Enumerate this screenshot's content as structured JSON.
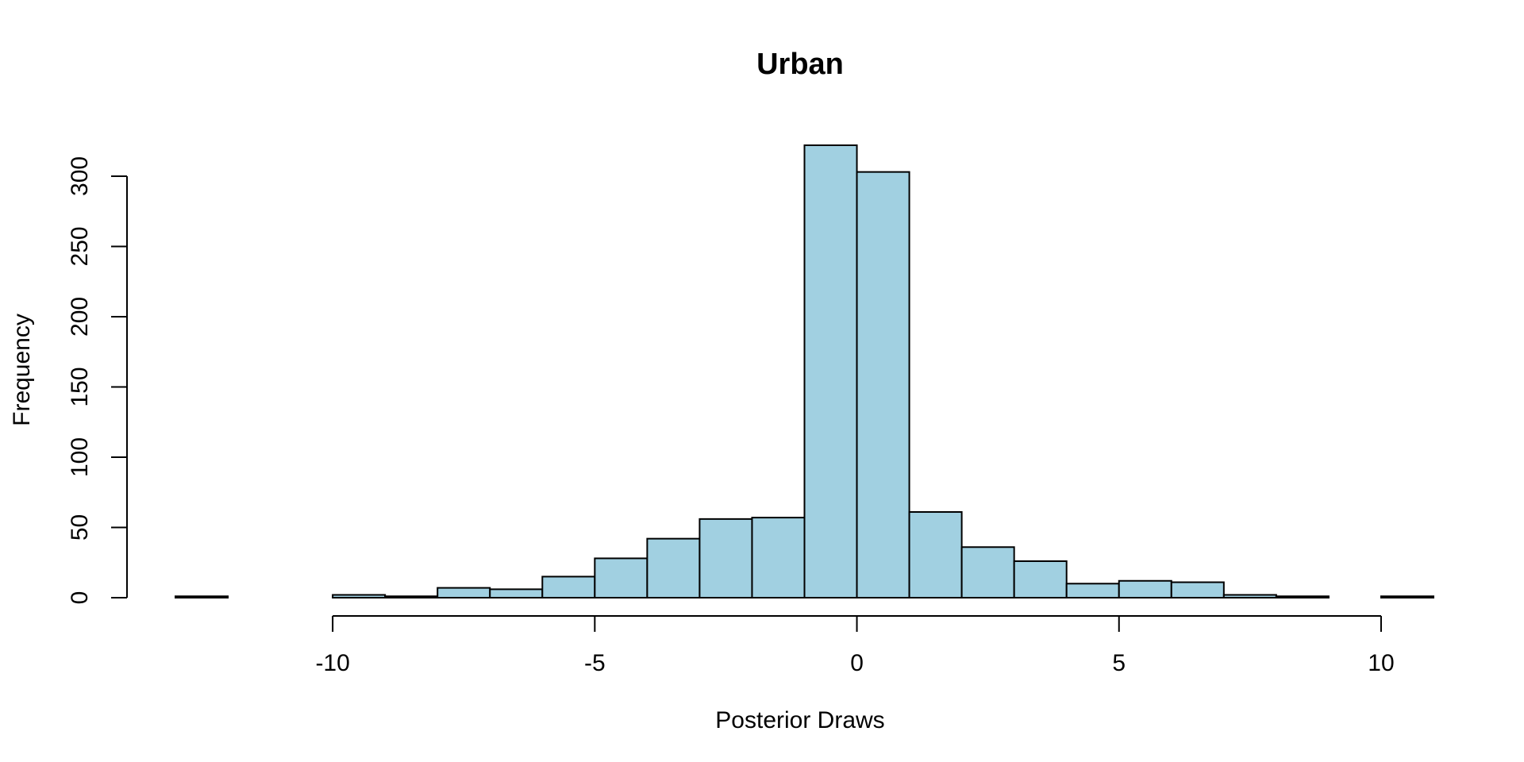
{
  "chart_data": {
    "type": "bar",
    "subtype": "histogram",
    "title": "Urban",
    "xlabel": "Posterior Draws",
    "ylabel": "Frequency",
    "bar_color": "#a1d0e1",
    "edge_color": "#000000",
    "bins": [
      {
        "x0": -13,
        "x1": -12,
        "count": 1
      },
      {
        "x0": -12,
        "x1": -11,
        "count": 0
      },
      {
        "x0": -11,
        "x1": -10,
        "count": 0
      },
      {
        "x0": -10,
        "x1": -9,
        "count": 2
      },
      {
        "x0": -9,
        "x1": -8,
        "count": 1
      },
      {
        "x0": -8,
        "x1": -7,
        "count": 7
      },
      {
        "x0": -7,
        "x1": -6,
        "count": 6
      },
      {
        "x0": -6,
        "x1": -5,
        "count": 15
      },
      {
        "x0": -5,
        "x1": -4,
        "count": 28
      },
      {
        "x0": -4,
        "x1": -3,
        "count": 42
      },
      {
        "x0": -3,
        "x1": -2,
        "count": 56
      },
      {
        "x0": -2,
        "x1": -1,
        "count": 57
      },
      {
        "x0": -1,
        "x1": 0,
        "count": 322
      },
      {
        "x0": 0,
        "x1": 1,
        "count": 303
      },
      {
        "x0": 1,
        "x1": 2,
        "count": 61
      },
      {
        "x0": 2,
        "x1": 3,
        "count": 36
      },
      {
        "x0": 3,
        "x1": 4,
        "count": 26
      },
      {
        "x0": 4,
        "x1": 5,
        "count": 10
      },
      {
        "x0": 5,
        "x1": 6,
        "count": 12
      },
      {
        "x0": 6,
        "x1": 7,
        "count": 11
      },
      {
        "x0": 7,
        "x1": 8,
        "count": 2
      },
      {
        "x0": 8,
        "x1": 9,
        "count": 1
      },
      {
        "x0": 9,
        "x1": 10,
        "count": 0
      },
      {
        "x0": 10,
        "x1": 11,
        "count": 1
      }
    ],
    "xlim": [
      -13,
      11
    ],
    "ylim": [
      0,
      322
    ],
    "x_ticks": [
      -10,
      -5,
      0,
      5,
      10
    ],
    "x_tick_labels": [
      "-10",
      "-5",
      "0",
      "5",
      "10"
    ],
    "y_ticks": [
      0,
      50,
      100,
      150,
      200,
      250,
      300
    ],
    "y_tick_labels": [
      "0",
      "50",
      "100",
      "150",
      "200",
      "250",
      "300"
    ],
    "grid": false,
    "legend": "none"
  }
}
